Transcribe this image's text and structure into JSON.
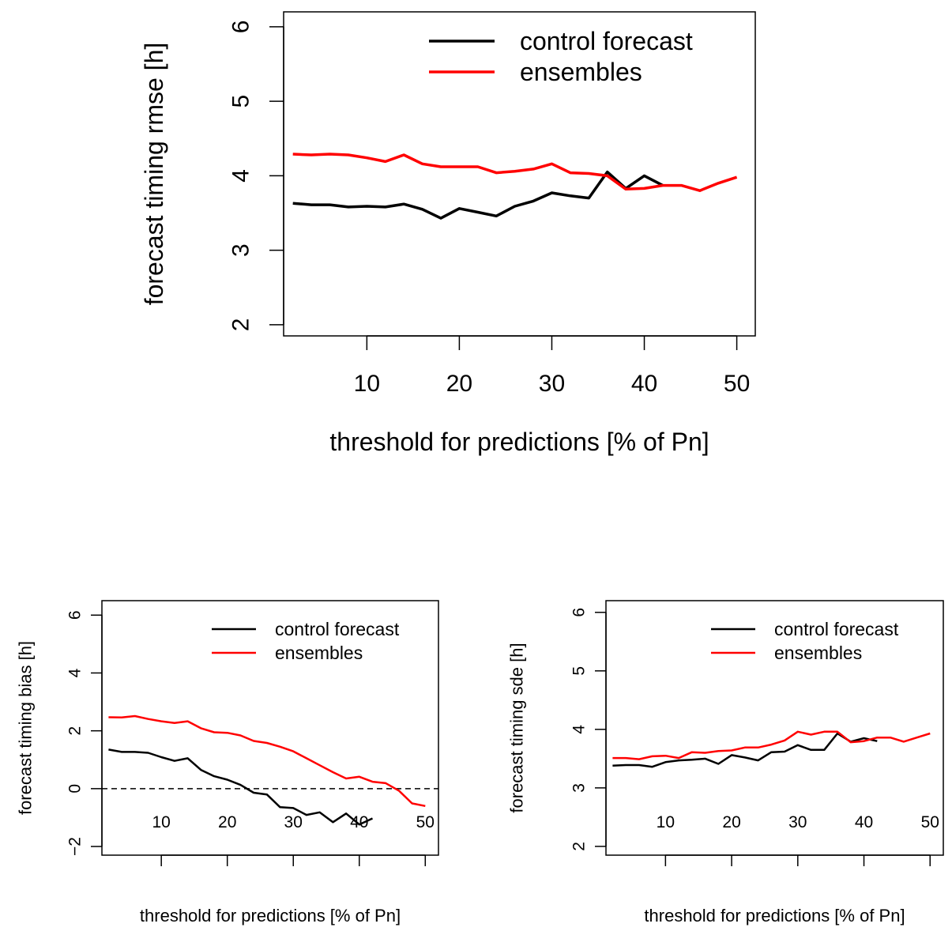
{
  "chart_data": [
    {
      "type": "line",
      "xlabel": "threshold for predictions [% of Pn]",
      "ylabel": "forecast timing rmse [h]",
      "xlim": [
        1,
        52
      ],
      "ylim": [
        1.85,
        6.2
      ],
      "xticks": [
        10,
        20,
        30,
        40,
        50
      ],
      "yticks": [
        2,
        3,
        4,
        5,
        6
      ],
      "legend": "top-right",
      "grid": false,
      "reference_line": null,
      "series": [
        {
          "name": "control forecast",
          "color": "#000000",
          "x": [
            2,
            4,
            6,
            8,
            10,
            12,
            14,
            16,
            18,
            20,
            22,
            24,
            26,
            28,
            30,
            32,
            34,
            36,
            38,
            40,
            42
          ],
          "y": [
            3.63,
            3.61,
            3.61,
            3.58,
            3.59,
            3.58,
            3.62,
            3.55,
            3.43,
            3.56,
            3.51,
            3.46,
            3.59,
            3.66,
            3.77,
            3.73,
            3.7,
            4.05,
            3.83,
            4.0,
            3.87
          ]
        },
        {
          "name": "ensembles",
          "color": "#ff0000",
          "x": [
            2,
            4,
            6,
            8,
            10,
            12,
            14,
            16,
            18,
            20,
            22,
            24,
            26,
            28,
            30,
            32,
            34,
            36,
            38,
            40,
            42,
            44,
            46,
            48,
            50
          ],
          "y": [
            4.29,
            4.28,
            4.29,
            4.28,
            4.24,
            4.19,
            4.28,
            4.16,
            4.12,
            4.12,
            4.12,
            4.04,
            4.06,
            4.09,
            4.16,
            4.04,
            4.03,
            4.0,
            3.82,
            3.83,
            3.87,
            3.87,
            3.8,
            3.9,
            3.98
          ]
        }
      ]
    },
    {
      "type": "line",
      "xlabel": "threshold for predictions [% of Pn]",
      "ylabel": "forecast timing bias [h]",
      "xlim": [
        1,
        52
      ],
      "ylim": [
        -2.3,
        6.5
      ],
      "xticks": [
        10,
        20,
        30,
        40,
        50
      ],
      "yticks": [
        -2,
        0,
        2,
        4,
        6
      ],
      "legend": "top-right",
      "grid": false,
      "reference_line": 0,
      "series": [
        {
          "name": "control forecast",
          "color": "#000000",
          "x": [
            2,
            4,
            6,
            8,
            10,
            12,
            14,
            16,
            18,
            20,
            22,
            24,
            26,
            28,
            30,
            32,
            34,
            36,
            38,
            40,
            42
          ],
          "y": [
            1.35,
            1.27,
            1.27,
            1.24,
            1.09,
            0.96,
            1.05,
            0.65,
            0.43,
            0.31,
            0.13,
            -0.14,
            -0.2,
            -0.64,
            -0.67,
            -0.91,
            -0.82,
            -1.16,
            -0.86,
            -1.24,
            -1.03
          ]
        },
        {
          "name": "ensembles",
          "color": "#ff0000",
          "x": [
            2,
            4,
            6,
            8,
            10,
            12,
            14,
            16,
            18,
            20,
            22,
            24,
            26,
            28,
            30,
            32,
            34,
            36,
            38,
            40,
            42,
            44,
            46,
            48,
            50
          ],
          "y": [
            2.47,
            2.46,
            2.51,
            2.41,
            2.33,
            2.27,
            2.33,
            2.09,
            1.95,
            1.93,
            1.84,
            1.65,
            1.58,
            1.45,
            1.29,
            1.05,
            0.81,
            0.57,
            0.35,
            0.41,
            0.24,
            0.19,
            -0.07,
            -0.51,
            -0.6
          ]
        }
      ]
    },
    {
      "type": "line",
      "xlabel": "threshold for predictions [% of Pn]",
      "ylabel": "forecast timing sde [h]",
      "xlim": [
        1,
        52
      ],
      "ylim": [
        1.85,
        6.2
      ],
      "xticks": [
        10,
        20,
        30,
        40,
        50
      ],
      "yticks": [
        2,
        3,
        4,
        5,
        6
      ],
      "legend": "top-right",
      "grid": false,
      "reference_line": null,
      "series": [
        {
          "name": "control forecast",
          "color": "#000000",
          "x": [
            2,
            4,
            6,
            8,
            10,
            12,
            14,
            16,
            18,
            20,
            22,
            24,
            26,
            28,
            30,
            32,
            34,
            36,
            38,
            40,
            42
          ],
          "y": [
            3.38,
            3.39,
            3.39,
            3.36,
            3.44,
            3.47,
            3.48,
            3.5,
            3.41,
            3.56,
            3.52,
            3.47,
            3.61,
            3.62,
            3.73,
            3.65,
            3.65,
            3.93,
            3.79,
            3.85,
            3.8
          ]
        },
        {
          "name": "ensembles",
          "color": "#ff0000",
          "x": [
            2,
            4,
            6,
            8,
            10,
            12,
            14,
            16,
            18,
            20,
            22,
            24,
            26,
            28,
            30,
            32,
            34,
            36,
            38,
            40,
            42,
            44,
            46,
            48,
            50
          ],
          "y": [
            3.51,
            3.51,
            3.49,
            3.54,
            3.55,
            3.51,
            3.61,
            3.6,
            3.63,
            3.64,
            3.69,
            3.69,
            3.74,
            3.81,
            3.96,
            3.91,
            3.96,
            3.96,
            3.78,
            3.8,
            3.86,
            3.86,
            3.79,
            3.86,
            3.93
          ]
        }
      ]
    }
  ]
}
